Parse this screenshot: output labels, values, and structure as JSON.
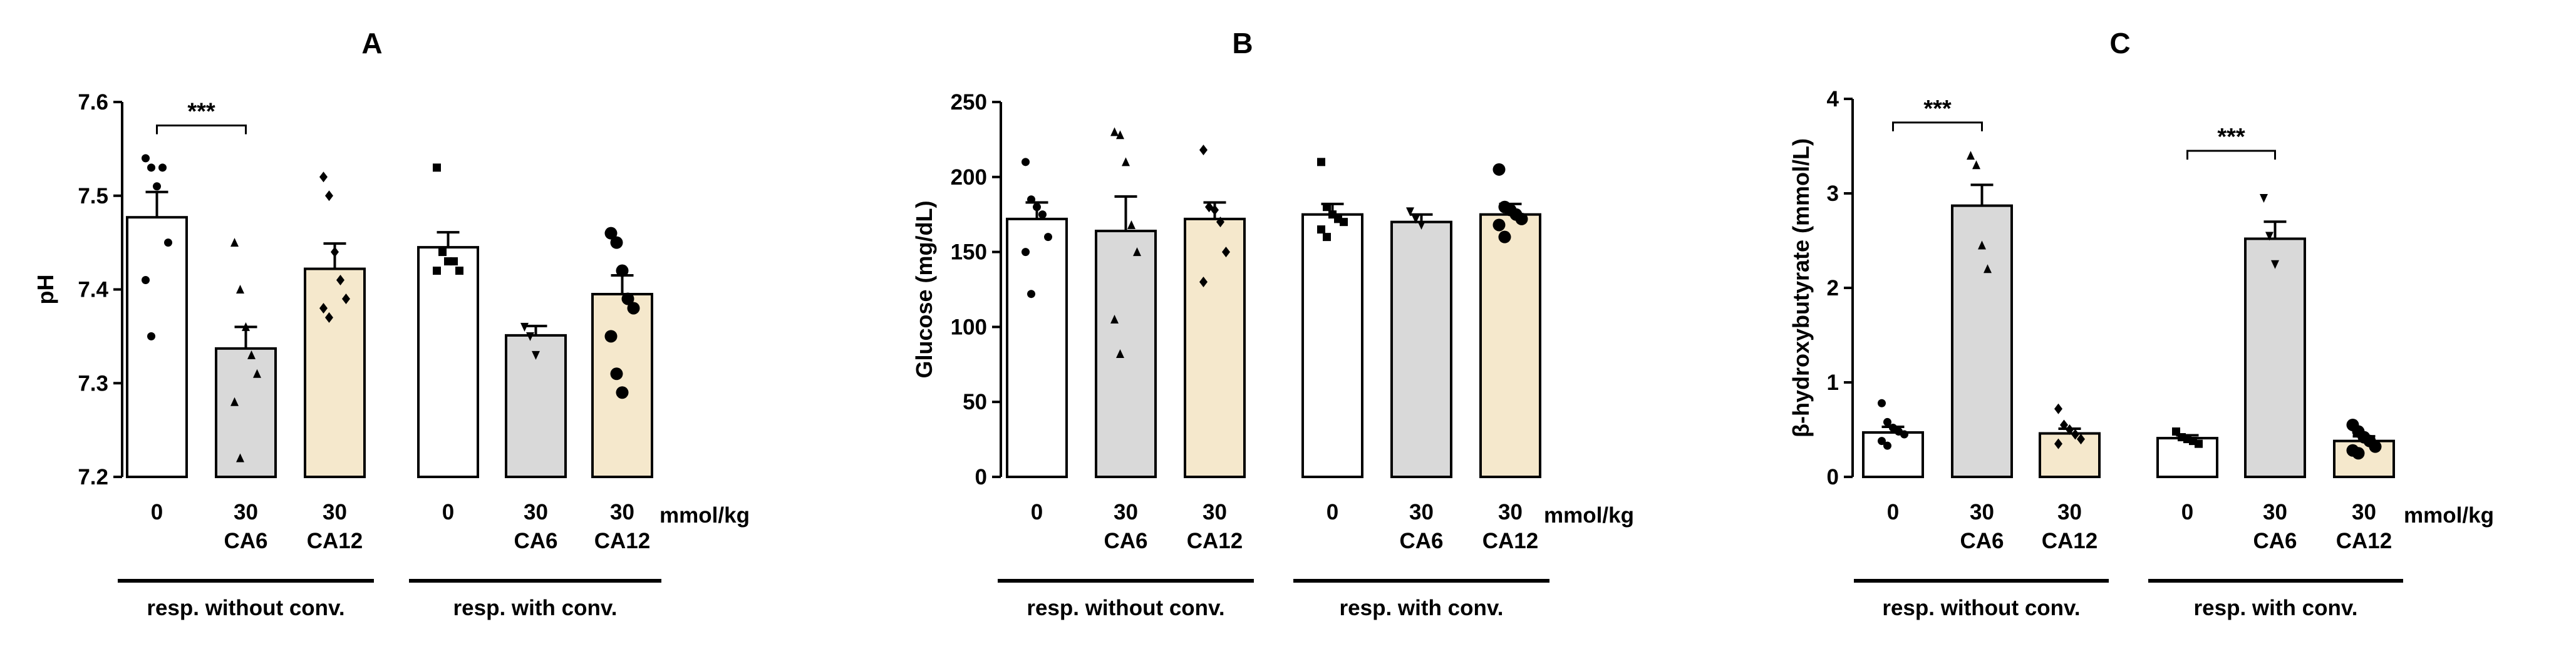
{
  "colors": {
    "white": "#ffffff",
    "gray": "#d9d9d9",
    "beige": "#f5e8cc",
    "stroke": "#000000"
  },
  "chart_data": [
    {
      "type": "bar",
      "title": "A",
      "ylabel": "pH",
      "ylim": [
        7.2,
        7.6
      ],
      "yticks": [
        "7.2",
        "7.3",
        "7.4",
        "7.5",
        "7.6"
      ],
      "categories": [
        {
          "l1": "0",
          "l2": ""
        },
        {
          "l1": "30",
          "l2": "CA6"
        },
        {
          "l1": "30",
          "l2": "CA12"
        },
        {
          "l1": "0",
          "l2": ""
        },
        {
          "l1": "30",
          "l2": "CA6"
        },
        {
          "l1": "30",
          "l2": "CA12"
        }
      ],
      "groups": [
        "resp. without conv.",
        "resp. with conv."
      ],
      "unit": "mmol/kg",
      "values": [
        7.477,
        7.337,
        7.422,
        7.445,
        7.351,
        7.395
      ],
      "errors": [
        0.027,
        0.023,
        0.027,
        0.016,
        0.01,
        0.02
      ],
      "fills": [
        "white",
        "gray",
        "beige",
        "white",
        "gray",
        "beige"
      ],
      "markers": [
        "circle",
        "triangle",
        "diamond",
        "square",
        "tri-down",
        "circle-big"
      ],
      "points": [
        [
          7.54,
          7.53,
          7.51,
          7.53,
          7.45,
          7.41,
          7.35
        ],
        [
          7.45,
          7.4,
          7.36,
          7.33,
          7.31,
          7.28,
          7.22
        ],
        [
          7.52,
          7.5,
          7.44,
          7.41,
          7.39,
          7.38,
          7.37
        ],
        [
          7.53,
          7.44,
          7.43,
          7.43,
          7.42,
          7.42
        ],
        [
          7.36,
          7.35,
          7.33
        ],
        [
          7.46,
          7.45,
          7.42,
          7.39,
          7.38,
          7.35,
          7.31,
          7.29
        ]
      ],
      "significance": [
        {
          "from": 0,
          "to": 1,
          "label": "***",
          "value": 7.575
        }
      ]
    },
    {
      "type": "bar",
      "title": "B",
      "ylabel": "Glucose (mg/dL)",
      "ylim": [
        0,
        250
      ],
      "yticks": [
        "0",
        "50",
        "100",
        "150",
        "200",
        "250"
      ],
      "categories": [
        {
          "l1": "0",
          "l2": ""
        },
        {
          "l1": "30",
          "l2": "CA6"
        },
        {
          "l1": "30",
          "l2": "CA12"
        },
        {
          "l1": "0",
          "l2": ""
        },
        {
          "l1": "30",
          "l2": "CA6"
        },
        {
          "l1": "30",
          "l2": "CA12"
        }
      ],
      "groups": [
        "resp. without conv.",
        "resp. with conv."
      ],
      "unit": "mmol/kg",
      "values": [
        172,
        164,
        172,
        175,
        170,
        175
      ],
      "errors": [
        11,
        23,
        11,
        7,
        5,
        7
      ],
      "fills": [
        "white",
        "gray",
        "beige",
        "white",
        "gray",
        "beige"
      ],
      "markers": [
        "circle",
        "triangle",
        "diamond",
        "square",
        "tri-down",
        "circle-big"
      ],
      "points": [
        [
          210,
          185,
          180,
          175,
          160,
          150,
          122
        ],
        [
          230,
          228,
          210,
          168,
          150,
          105,
          82
        ],
        [
          218,
          180,
          178,
          170,
          150,
          130
        ],
        [
          210,
          180,
          175,
          172,
          170,
          165,
          160
        ],
        [
          177,
          172,
          168
        ],
        [
          205,
          180,
          178,
          175,
          172,
          168,
          160
        ]
      ],
      "significance": []
    },
    {
      "type": "bar",
      "title": "C",
      "ylabel": "β-hydroxybutyrate (mmol/L)",
      "ylim": [
        0,
        4
      ],
      "yticks": [
        "0",
        "1",
        "2",
        "3",
        "4"
      ],
      "categories": [
        {
          "l1": "0",
          "l2": ""
        },
        {
          "l1": "30",
          "l2": "CA6"
        },
        {
          "l1": "30",
          "l2": "CA12"
        },
        {
          "l1": "0",
          "l2": ""
        },
        {
          "l1": "30",
          "l2": "CA6"
        },
        {
          "l1": "30",
          "l2": "CA12"
        }
      ],
      "groups": [
        "resp. without conv.",
        "resp. with conv."
      ],
      "unit": "mmol/kg",
      "values": [
        0.47,
        2.87,
        0.46,
        0.41,
        2.52,
        0.38
      ],
      "errors": [
        0.06,
        0.22,
        0.05,
        0.03,
        0.18,
        0.05
      ],
      "fills": [
        "white",
        "gray",
        "beige",
        "white",
        "gray",
        "beige"
      ],
      "markers": [
        "circle",
        "triangle",
        "diamond",
        "square",
        "tri-down",
        "circle-big"
      ],
      "points": [
        [
          0.78,
          0.58,
          0.52,
          0.48,
          0.45,
          0.38,
          0.33
        ],
        [
          3.4,
          3.3,
          2.45,
          2.2
        ],
        [
          0.72,
          0.55,
          0.5,
          0.45,
          0.4,
          0.35
        ],
        [
          0.48,
          0.42,
          0.4,
          0.38,
          0.35
        ],
        [
          2.95,
          2.55,
          2.25
        ],
        [
          0.55,
          0.48,
          0.42,
          0.38,
          0.32,
          0.28,
          0.25
        ]
      ],
      "significance": [
        {
          "from": 0,
          "to": 1,
          "label": "***",
          "value": 3.75
        },
        {
          "from": 3,
          "to": 4,
          "label": "***",
          "value": 3.45
        }
      ]
    }
  ]
}
